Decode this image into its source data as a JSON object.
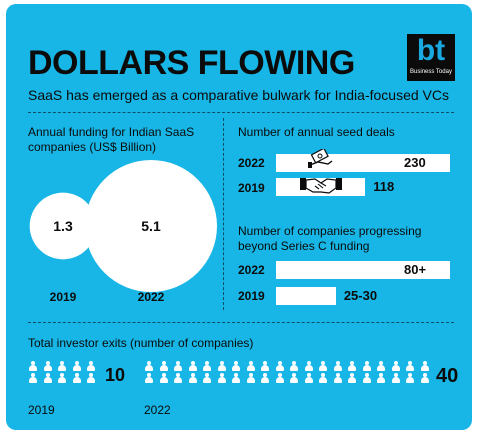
{
  "header": {
    "title": "DOLLARS FLOWING",
    "subtitle": "SaaS has emerged as a comparative bulwark for India-focused VCs"
  },
  "logo": {
    "mark": "bt",
    "tagline": "Business Today"
  },
  "colors": {
    "background": "#17b6e6",
    "ink": "#0b0b0b",
    "fill": "#ffffff",
    "logo_blue": "#1aa8e0"
  },
  "icons": {
    "seed_deals": "cash-in-hand-icon",
    "seed_deals_2019": "handshake-icon",
    "exits": "person-icon"
  },
  "chart_data": [
    {
      "type": "bubble",
      "title": "Annual funding for Indian SaaS companies (US$ Billion)",
      "categories": [
        "2019",
        "2022"
      ],
      "values": [
        1.3,
        5.1
      ],
      "value_labels": [
        "1.3",
        "5.1"
      ]
    },
    {
      "type": "bar",
      "orientation": "horizontal",
      "title": "Number of annual seed deals",
      "categories": [
        "2022",
        "2019"
      ],
      "values": [
        230,
        118
      ],
      "value_labels": [
        "230",
        "118"
      ]
    },
    {
      "type": "bar",
      "orientation": "horizontal",
      "title": "Number of companies progressing beyond Series C funding",
      "categories": [
        "2022",
        "2019"
      ],
      "values": [
        80,
        27.5
      ],
      "value_labels": [
        "80+",
        "25-30"
      ]
    },
    {
      "type": "pictograph",
      "title": "Total investor exits (number of companies)",
      "categories": [
        "2019",
        "2022"
      ],
      "values": [
        10,
        40
      ],
      "value_labels": [
        "10",
        "40"
      ]
    }
  ]
}
